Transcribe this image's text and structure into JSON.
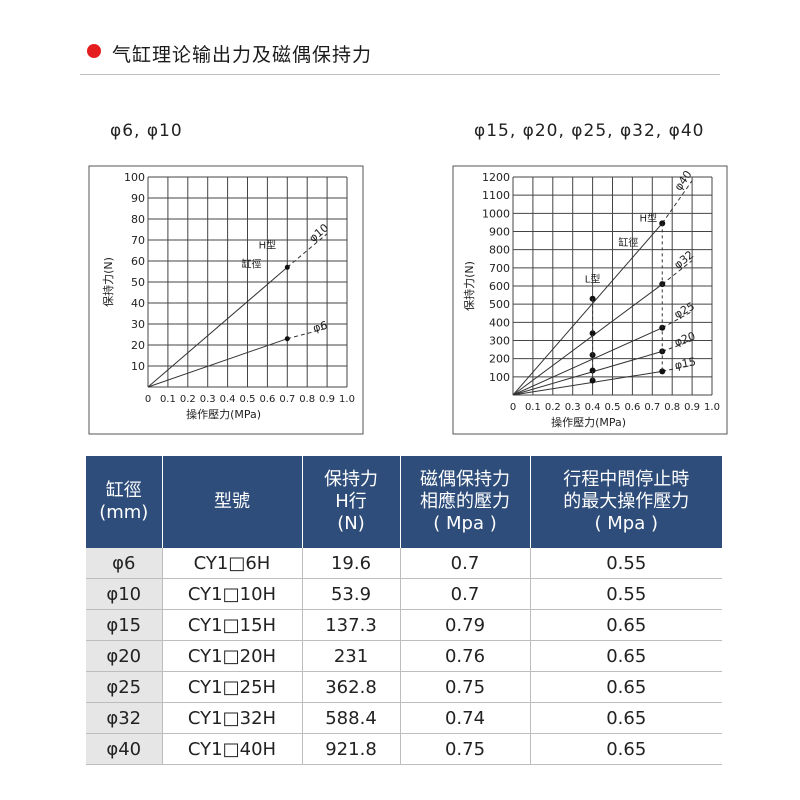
{
  "page_title": "气缸理论输出力及磁偶保持力",
  "chart_labels": [
    "φ6, φ10",
    "φ15, φ20, φ25, φ32, φ40"
  ],
  "colors": {
    "accent_dot": "#e41e1e",
    "table_header": "#2e4d7b",
    "first_col_bg": "#e6e6e6"
  },
  "chart_data": [
    {
      "type": "line",
      "xlabel": "操作壓力(MPa)",
      "ylabel": "保持力(N)",
      "xlim": [
        0,
        1.0
      ],
      "ylim": [
        0,
        100
      ],
      "x_ticks": [
        "0",
        "0.1",
        "0.2",
        "0.3",
        "0.4",
        "0.5",
        "0.6",
        "0.7",
        "0.8",
        "0.9",
        "1.0"
      ],
      "y_ticks": [
        "10",
        "20",
        "30",
        "40",
        "50",
        "60",
        "70",
        "80",
        "90",
        "100"
      ],
      "grid": true,
      "series": [
        {
          "name": "φ10",
          "x": [
            0,
            0.7,
            0.9
          ],
          "y": [
            0,
            57,
            73
          ],
          "marker": {
            "x": 0.7,
            "y": 57
          }
        },
        {
          "name": "φ6",
          "x": [
            0,
            0.7,
            0.9
          ],
          "y": [
            0,
            23,
            28
          ],
          "marker": {
            "x": 0.7,
            "y": 23
          }
        }
      ],
      "annotations": [
        "H型",
        "缸徑"
      ]
    },
    {
      "type": "line",
      "xlabel": "操作壓力(MPa)",
      "ylabel": "保持力(N)",
      "xlim": [
        0,
        1.0
      ],
      "ylim": [
        0,
        1200
      ],
      "x_ticks": [
        "0",
        "0.1",
        "0.2",
        "0.3",
        "0.4",
        "0.5",
        "0.6",
        "0.7",
        "0.8",
        "0.9",
        "1.0"
      ],
      "y_ticks": [
        "100",
        "200",
        "300",
        "400",
        "500",
        "600",
        "700",
        "800",
        "900",
        "1000",
        "1100",
        "1200"
      ],
      "grid": true,
      "series": [
        {
          "name": "φ40",
          "x": [
            0,
            0.75,
            0.9
          ],
          "y": [
            0,
            945,
            1180
          ],
          "markers": [
            {
              "x": 0.4,
              "y": 530
            },
            {
              "x": 0.75,
              "y": 945
            }
          ]
        },
        {
          "name": "φ32",
          "x": [
            0,
            0.75,
            0.9
          ],
          "y": [
            0,
            610,
            740
          ],
          "markers": [
            {
              "x": 0.4,
              "y": 340
            },
            {
              "x": 0.75,
              "y": 610
            }
          ]
        },
        {
          "name": "φ25",
          "x": [
            0,
            0.75,
            0.9
          ],
          "y": [
            0,
            370,
            460
          ],
          "markers": [
            {
              "x": 0.4,
              "y": 220
            },
            {
              "x": 0.75,
              "y": 370
            }
          ]
        },
        {
          "name": "φ20",
          "x": [
            0,
            0.75,
            0.9
          ],
          "y": [
            0,
            240,
            300
          ],
          "markers": [
            {
              "x": 0.4,
              "y": 135
            },
            {
              "x": 0.75,
              "y": 240
            }
          ]
        },
        {
          "name": "φ15",
          "x": [
            0,
            0.75,
            0.9
          ],
          "y": [
            0,
            130,
            165
          ],
          "markers": [
            {
              "x": 0.4,
              "y": 80
            },
            {
              "x": 0.75,
              "y": 130
            }
          ]
        }
      ],
      "annotations": [
        "H型",
        "L型",
        "缸徑"
      ]
    }
  ],
  "table": {
    "headers": [
      "缸徑\n(mm)",
      "型號",
      "保持力\nH行\n(N)",
      "磁偶保持力\n相應的壓力\n( Mpa )",
      "行程中間停止時\n的最大操作壓力\n( Mpa )"
    ],
    "rows": [
      [
        "φ6",
        "CY1□6H",
        "19.6",
        "0.7",
        "0.55"
      ],
      [
        "φ10",
        "CY1□10H",
        "53.9",
        "0.7",
        "0.55"
      ],
      [
        "φ15",
        "CY1□15H",
        "137.3",
        "0.79",
        "0.65"
      ],
      [
        "φ20",
        "CY1□20H",
        "231",
        "0.76",
        "0.65"
      ],
      [
        "φ25",
        "CY1□25H",
        "362.8",
        "0.75",
        "0.65"
      ],
      [
        "φ32",
        "CY1□32H",
        "588.4",
        "0.74",
        "0.65"
      ],
      [
        "φ40",
        "CY1□40H",
        "921.8",
        "0.75",
        "0.65"
      ]
    ]
  }
}
